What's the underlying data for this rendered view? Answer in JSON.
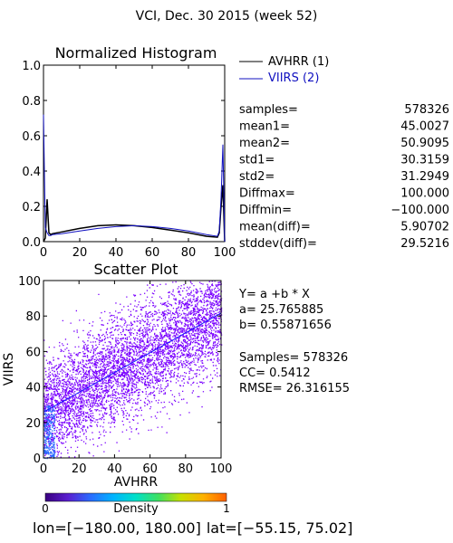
{
  "page_title": "VCI,  Dec. 30 2015 (week 52)",
  "colors": {
    "avhrr": "#000000",
    "viirs": "#1010c0",
    "scatter_points": "#7a00ff",
    "fit_line": "#1a1aff"
  },
  "histogram_stats": {
    "rows": [
      {
        "label": "samples=",
        "value": "578326"
      },
      {
        "label": "mean1=",
        "value": "45.0027"
      },
      {
        "label": "mean2=",
        "value": "50.9095"
      },
      {
        "label": "std1=",
        "value": "30.3159"
      },
      {
        "label": "std2=",
        "value": "31.2949"
      },
      {
        "label": "Diffmax=",
        "value": "100.000"
      },
      {
        "label": "Diffmin=",
        "value": "−100.000"
      },
      {
        "label": "mean(diff)=",
        "value": "5.90702"
      },
      {
        "label": "stddev(diff)=",
        "value": "29.5216"
      }
    ]
  },
  "regression": {
    "equation": "Y= a +b * X",
    "a_line": "a= 25.765885",
    "b_line": "b= 0.55871656",
    "samples_line": "Samples= 578326",
    "cc_line": "CC=  0.5412",
    "rmse_line": "RMSE= 26.316155"
  },
  "colorbar": {
    "min_label": "0",
    "max_label": "1",
    "title": "Density",
    "stops": [
      "#3a0080",
      "#5a1fd0",
      "#2a6cff",
      "#00b4ff",
      "#00e0c8",
      "#40e060",
      "#c8e000",
      "#ffb000",
      "#ff6000"
    ]
  },
  "footer": {
    "lon_text": "lon=",
    "lon_range": "[−180.00, 180.00]",
    "lat_text": "lat=",
    "lat_range": "[−55.15, 75.02]"
  },
  "chart_data": [
    {
      "type": "line",
      "title": "Normalized Histogram",
      "xlim": [
        0,
        100
      ],
      "ylim": [
        0,
        1.0
      ],
      "x_ticks": [
        0,
        20,
        40,
        60,
        80,
        100
      ],
      "y_ticks": [
        "0.0",
        "0.2",
        "0.4",
        "0.6",
        "0.8",
        "1.0"
      ],
      "legend": "top-right",
      "series": [
        {
          "name": "AVHRR (1)",
          "color": "#000000",
          "x": [
            0,
            1,
            2,
            3,
            4,
            5,
            10,
            20,
            30,
            40,
            50,
            60,
            70,
            80,
            90,
            96,
            97,
            98,
            99,
            100
          ],
          "y": [
            0.0,
            0.02,
            0.24,
            0.05,
            0.04,
            0.045,
            0.055,
            0.075,
            0.09,
            0.095,
            0.09,
            0.08,
            0.065,
            0.05,
            0.03,
            0.025,
            0.05,
            0.2,
            0.32,
            0.0
          ]
        },
        {
          "name": "VIIRS (2)",
          "color": "#1010c0",
          "x": [
            0,
            1,
            2,
            3,
            4,
            5,
            10,
            20,
            30,
            40,
            50,
            60,
            70,
            80,
            90,
            96,
            97,
            98,
            99,
            100
          ],
          "y": [
            0.72,
            0.08,
            0.05,
            0.035,
            0.035,
            0.04,
            0.045,
            0.06,
            0.075,
            0.085,
            0.09,
            0.085,
            0.075,
            0.06,
            0.04,
            0.03,
            0.06,
            0.25,
            0.55,
            0.0
          ]
        }
      ]
    },
    {
      "type": "scatter",
      "title": "Scatter Plot",
      "xlabel": "AVHRR",
      "ylabel": "VIIRS",
      "xlim": [
        0,
        100
      ],
      "ylim": [
        0,
        100
      ],
      "x_ticks": [
        0,
        20,
        40,
        60,
        80,
        100
      ],
      "y_ticks": [
        0,
        20,
        40,
        60,
        80,
        100
      ],
      "fit": {
        "intercept": 25.765885,
        "slope": 0.55871656
      },
      "cloud": {
        "samples": 578326,
        "cc": 0.5412
      }
    }
  ]
}
